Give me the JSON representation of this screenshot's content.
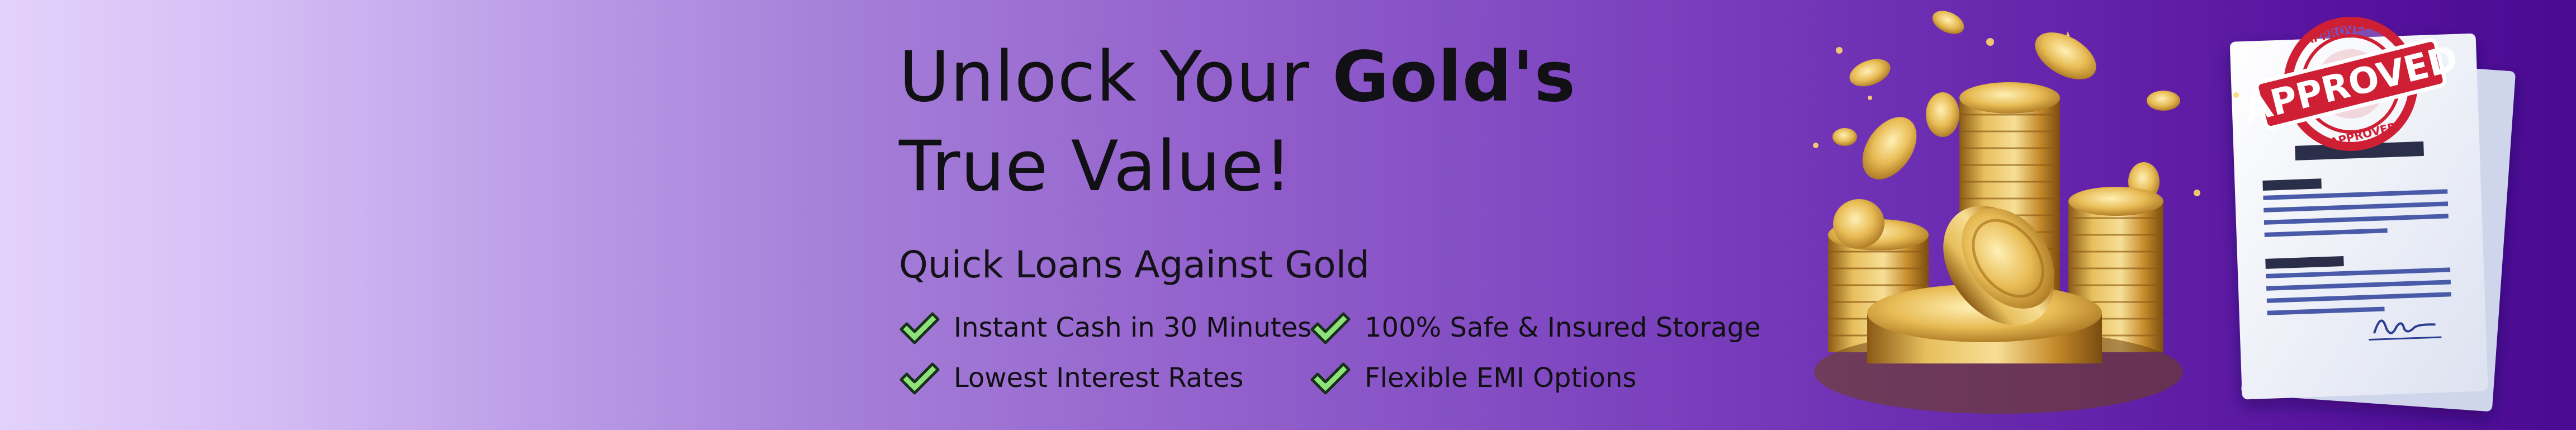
{
  "banner": {
    "headline_line1_regular": "Unlock Your ",
    "headline_line1_bold": "Gold's",
    "headline_line2": "True Value!",
    "subheadline": "Quick Loans Against Gold",
    "features": [
      "Instant Cash in 30 Minutes",
      "100% Safe & Insured Storage",
      "Lowest Interest Rates",
      "Flexible EMI Options"
    ],
    "stamp_text": "APPROVED",
    "stamp_ring_text": "APPROVED",
    "colors": {
      "gradient_start": "#e3d2fb",
      "gradient_end": "#4a0a92",
      "check_fill": "#8ee27a",
      "gold": "#d9a93a",
      "stamp_red": "#cf1f35",
      "document_lines": "#3b4a8f"
    },
    "icons": [
      "check-icon",
      "gold-coins-illustration",
      "approved-document-illustration"
    ]
  }
}
